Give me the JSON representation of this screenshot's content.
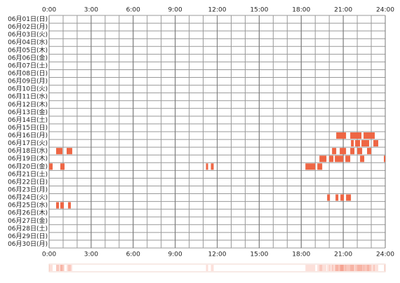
{
  "chart_data": {
    "type": "timeline",
    "color": "#ee6644",
    "xlim": [
      0,
      24
    ],
    "xticks": [
      {
        "value": 0,
        "label": "0:00"
      },
      {
        "value": 3,
        "label": "3:00"
      },
      {
        "value": 6,
        "label": "6:00"
      },
      {
        "value": 9,
        "label": "9:00"
      },
      {
        "value": 12,
        "label": "12:00"
      },
      {
        "value": 15,
        "label": "15:00"
      },
      {
        "value": 18,
        "label": "18:00"
      },
      {
        "value": 21,
        "label": "21:00"
      },
      {
        "value": 24,
        "label": "24:00"
      }
    ],
    "days": [
      {
        "label": "06月01日(日)",
        "segments": []
      },
      {
        "label": "06月02日(月)",
        "segments": []
      },
      {
        "label": "06月03日(火)",
        "segments": []
      },
      {
        "label": "06月04日(水)",
        "segments": []
      },
      {
        "label": "06月05日(木)",
        "segments": []
      },
      {
        "label": "06月06日(金)",
        "segments": []
      },
      {
        "label": "06月07日(土)",
        "segments": []
      },
      {
        "label": "06月08日(日)",
        "segments": []
      },
      {
        "label": "06月09日(月)",
        "segments": []
      },
      {
        "label": "06月10日(火)",
        "segments": []
      },
      {
        "label": "06月11日(水)",
        "segments": []
      },
      {
        "label": "06月12日(木)",
        "segments": []
      },
      {
        "label": "06月13日(金)",
        "segments": []
      },
      {
        "label": "06月14日(土)",
        "segments": []
      },
      {
        "label": "06月15日(日)",
        "segments": []
      },
      {
        "label": "06月16日(月)",
        "segments": [
          [
            20.5,
            21.2
          ],
          [
            21.5,
            22.3
          ],
          [
            22.45,
            23.25
          ]
        ]
      },
      {
        "label": "06月17日(火)",
        "segments": [
          [
            21.55,
            21.75
          ],
          [
            21.85,
            22.2
          ],
          [
            22.3,
            22.85
          ],
          [
            23.15,
            23.5
          ]
        ]
      },
      {
        "label": "06月18日(水)",
        "segments": [
          [
            0.5,
            0.95
          ],
          [
            1.25,
            1.65
          ],
          [
            20.2,
            20.5
          ],
          [
            20.75,
            21.2
          ],
          [
            21.5,
            21.8
          ],
          [
            22.0,
            22.35
          ],
          [
            22.7,
            23.0
          ]
        ]
      },
      {
        "label": "06月19日(木)",
        "segments": [
          [
            19.3,
            19.8
          ],
          [
            20.0,
            20.3
          ],
          [
            20.4,
            21.0
          ],
          [
            21.15,
            21.5
          ],
          [
            22.2,
            22.5
          ],
          [
            23.9,
            24.0
          ]
        ]
      },
      {
        "label": "06月20日(金)",
        "segments": [
          [
            0.0,
            0.25
          ],
          [
            0.8,
            1.1
          ],
          [
            11.2,
            11.35
          ],
          [
            11.55,
            11.75
          ],
          [
            18.3,
            19.0
          ],
          [
            19.15,
            19.5
          ]
        ]
      },
      {
        "label": "06月21日(土)",
        "segments": []
      },
      {
        "label": "06月22日(日)",
        "segments": []
      },
      {
        "label": "06月23日(月)",
        "segments": []
      },
      {
        "label": "06月24日(火)",
        "segments": [
          [
            19.85,
            20.05
          ],
          [
            20.45,
            20.65
          ],
          [
            20.8,
            21.05
          ],
          [
            21.2,
            21.55
          ]
        ]
      },
      {
        "label": "06月25日(水)",
        "segments": [
          [
            0.5,
            0.7
          ],
          [
            0.8,
            1.05
          ],
          [
            1.35,
            1.55
          ]
        ]
      },
      {
        "label": "06月26日(木)",
        "segments": []
      },
      {
        "label": "06月27日(金)",
        "segments": []
      },
      {
        "label": "06月28日(土)",
        "segments": []
      },
      {
        "label": "06月29日(日)",
        "segments": []
      },
      {
        "label": "06月30日(月)",
        "segments": []
      }
    ]
  }
}
